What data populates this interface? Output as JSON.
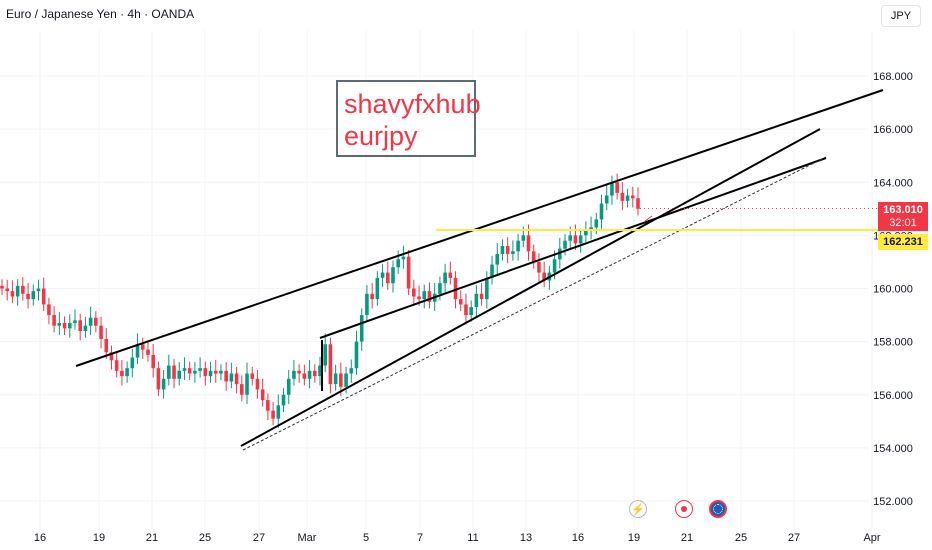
{
  "header": {
    "symbol_title": "Euro / Japanese Yen · 4h · OANDA",
    "currency_button": "JPY"
  },
  "annotation": {
    "line1": "shavyfxhub",
    "line2": "eurjpy"
  },
  "price_tags": {
    "current_price": "163.010",
    "countdown": "32:01",
    "level_price": "162.231"
  },
  "events": [
    {
      "icon": "flash-icon"
    },
    {
      "icon": "red-dot-icon"
    },
    {
      "icon": "globe-flag-icon"
    }
  ],
  "colors": {
    "up": "#089981",
    "down": "#f23645",
    "level_line": "#ffeb3b",
    "trendline": "#000000",
    "axis_text": "#131722",
    "grid": "#f0f3fa"
  },
  "chart_data": {
    "type": "candlestick",
    "symbol": "EURJPY",
    "timeframe": "4h",
    "exchange": "OANDA",
    "x_tick_labels": [
      "16",
      "19",
      "21",
      "25",
      "27",
      "Mar",
      "5",
      "7",
      "11",
      "13",
      "16",
      "19",
      "21",
      "25",
      "27",
      "Apr"
    ],
    "y_tick_labels": [
      "152.000",
      "154.000",
      "156.000",
      "158.000",
      "160.000",
      "162.000",
      "164.000",
      "166.000",
      "168.000"
    ],
    "ylim": [
      151.3,
      169.8
    ],
    "closes": [
      160,
      159.9,
      159.7,
      160.1,
      159.8,
      159.6,
      159.9,
      160.0,
      159.4,
      159.0,
      158.6,
      158.7,
      158.5,
      158.7,
      158.8,
      158.4,
      158.6,
      158.9,
      158.6,
      158.1,
      157.6,
      157.3,
      156.9,
      156.7,
      157.0,
      157.4,
      157.9,
      157.7,
      157.5,
      157.0,
      156.2,
      156.6,
      157.1,
      156.6,
      156.9,
      157.0,
      156.8,
      156.9,
      157.0,
      156.7,
      156.9,
      156.8,
      156.9,
      156.5,
      156.8,
      156.4,
      156.0,
      156.8,
      156.6,
      156.2,
      155.8,
      155.4,
      155.1,
      155.6,
      156.0,
      156.6,
      156.9,
      156.8,
      156.6,
      156.9,
      156.7,
      157.1,
      157.9,
      156.4,
      156.8,
      156.3,
      156.8,
      157.0,
      158.0,
      159.0,
      159.8,
      159.6,
      160.4,
      160.6,
      160.2,
      160.8,
      161.1,
      161.2,
      160.0,
      159.7,
      159.6,
      159.9,
      159.5,
      159.8,
      160.2,
      160.6,
      160.4,
      159.6,
      159.4,
      159.0,
      159.3,
      159.8,
      159.6,
      160.4,
      160.9,
      161.3,
      161.6,
      161.3,
      161.4,
      161.8,
      162.0,
      161.4,
      161.0,
      160.6,
      160.3,
      160.6,
      161.1,
      161.5,
      161.8,
      162.0,
      161.7,
      162.0,
      162.2,
      162.3,
      162.6,
      163.2,
      163.5,
      164.0,
      163.6,
      163.3,
      163.5,
      163.4,
      163.0
    ],
    "trendlines": [
      {
        "name": "upper-channel",
        "from": {
          "date": "Feb 17",
          "price": 157.1
        },
        "to": {
          "date": "Apr 1",
          "price": 167.5
        }
      },
      {
        "name": "lower-trendline",
        "from": {
          "date": "Feb 26",
          "price": 154.05
        },
        "to": {
          "date": "Mar 27",
          "price": 166.1
        }
      },
      {
        "name": "inner-channel",
        "from": {
          "date": "Mar 1",
          "price": 158.2
        },
        "to": {
          "date": "Mar 27",
          "price": 164.9
        }
      }
    ],
    "horizontal_levels": [
      162.231
    ],
    "current_price": 163.01
  }
}
